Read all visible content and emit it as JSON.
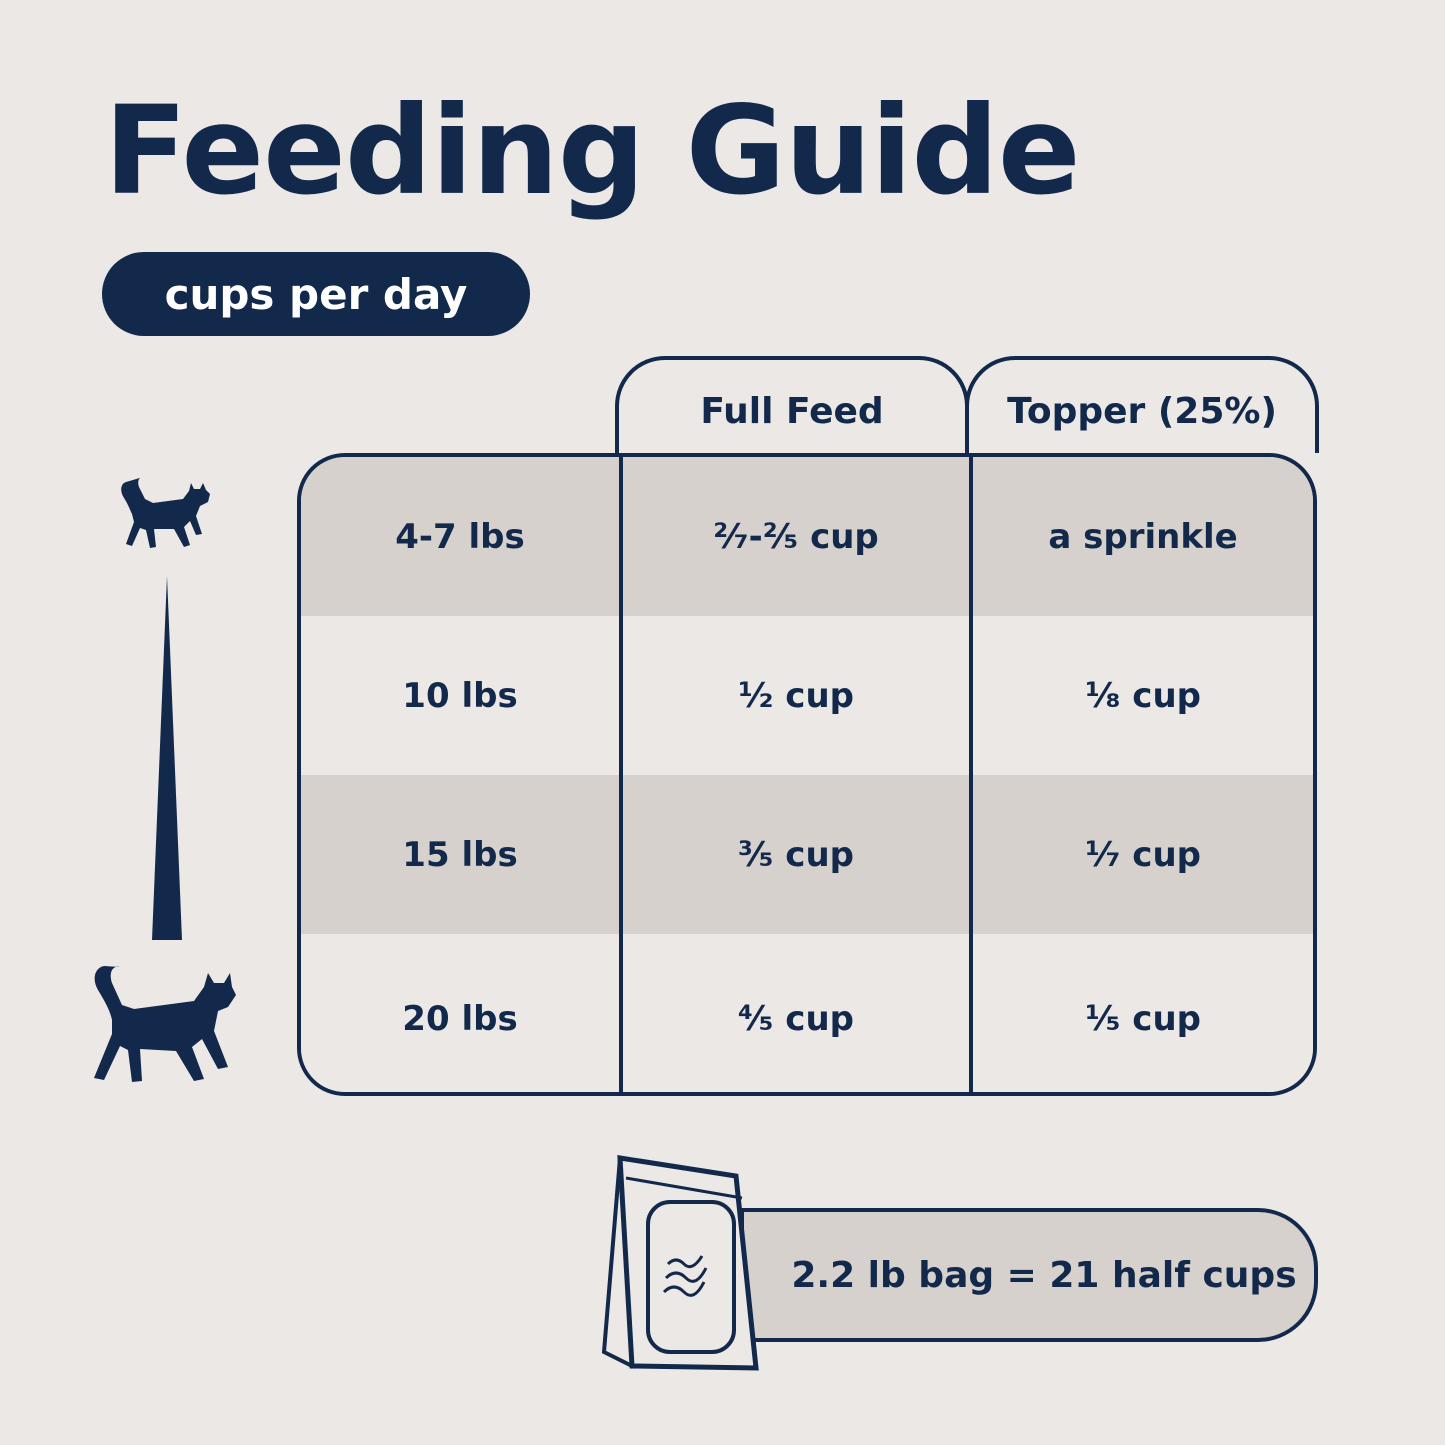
{
  "title": "Feeding Guide",
  "unit_pill": "cups per day",
  "columns": [
    "Full Feed",
    "Topper (25%)"
  ],
  "rows": [
    {
      "weight": "4-7 lbs",
      "full_feed": "²⁄₇-²⁄₅ cup",
      "topper": "a sprinkle"
    },
    {
      "weight": "10 lbs",
      "full_feed": "¹⁄₂ cup",
      "topper": "¹⁄₈ cup"
    },
    {
      "weight": "15 lbs",
      "full_feed": "³⁄₅ cup",
      "topper": "¹⁄₇ cup"
    },
    {
      "weight": "20 lbs",
      "full_feed": "⁴⁄₅ cup",
      "topper": "¹⁄₅ cup"
    }
  ],
  "bag_note": "2.2 lb bag = 21 half cups",
  "icons": {
    "small_cat": "small-cat-icon",
    "large_cat": "large-cat-icon",
    "scale": "size-wedge-icon",
    "bag": "food-bag-icon"
  },
  "colors": {
    "navy": "#13294b",
    "background": "#ebe8e5",
    "shaded_row": "#d6d1cd"
  }
}
